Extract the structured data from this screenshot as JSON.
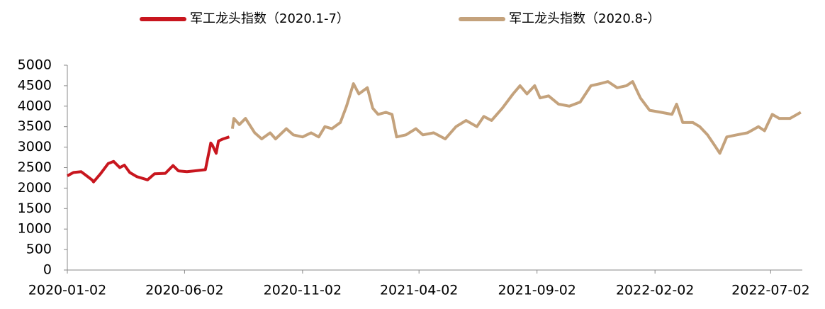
{
  "chart_data": {
    "type": "line",
    "series": [
      {
        "name": "军工龙头指数（2020.1-7）",
        "color": "#c8161e",
        "x": [
          "2020-01-02",
          "2020-01-10",
          "2020-01-20",
          "2020-02-03",
          "2020-02-05",
          "2020-02-14",
          "2020-02-24",
          "2020-03-02",
          "2020-03-10",
          "2020-03-16",
          "2020-03-23",
          "2020-04-01",
          "2020-04-15",
          "2020-04-24",
          "2020-05-08",
          "2020-05-18",
          "2020-05-25",
          "2020-06-05",
          "2020-06-15",
          "2020-06-29",
          "2020-07-06",
          "2020-07-08",
          "2020-07-13",
          "2020-07-16",
          "2020-07-22",
          "2020-07-30"
        ],
        "values": [
          2300,
          2380,
          2400,
          2200,
          2150,
          2350,
          2600,
          2650,
          2500,
          2560,
          2380,
          2280,
          2200,
          2350,
          2360,
          2550,
          2420,
          2400,
          2420,
          2450,
          3100,
          3050,
          2850,
          3150,
          3200,
          3250
        ]
      },
      {
        "name": "军工龙头指数（2020.8-）",
        "color": "#c4a27c",
        "x": [
          "2020-08-03",
          "2020-08-05",
          "2020-08-12",
          "2020-08-20",
          "2020-09-01",
          "2020-09-10",
          "2020-09-21",
          "2020-09-28",
          "2020-10-12",
          "2020-10-21",
          "2020-11-02",
          "2020-11-13",
          "2020-11-23",
          "2020-12-01",
          "2020-12-10",
          "2020-12-21",
          "2020-12-29",
          "2021-01-07",
          "2021-01-14",
          "2021-01-25",
          "2021-02-01",
          "2021-02-08",
          "2021-02-18",
          "2021-02-26",
          "2021-03-04",
          "2021-03-16",
          "2021-03-29",
          "2021-04-07",
          "2021-04-21",
          "2021-05-06",
          "2021-05-20",
          "2021-06-02",
          "2021-06-16",
          "2021-06-25",
          "2021-07-05",
          "2021-07-19",
          "2021-08-02",
          "2021-08-11",
          "2021-08-20",
          "2021-08-30",
          "2021-09-06",
          "2021-09-17",
          "2021-09-30",
          "2021-10-14",
          "2021-10-28",
          "2021-11-11",
          "2021-11-23",
          "2021-12-03",
          "2021-12-15",
          "2021-12-27",
          "2022-01-04",
          "2022-01-14",
          "2022-01-26",
          "2022-02-10",
          "2022-02-24",
          "2022-03-02",
          "2022-03-10",
          "2022-03-23",
          "2022-04-01",
          "2022-04-11",
          "2022-04-20",
          "2022-04-27",
          "2022-05-06",
          "2022-05-19",
          "2022-06-02",
          "2022-06-16",
          "2022-06-24",
          "2022-07-04",
          "2022-07-13",
          "2022-07-27",
          "2022-08-10"
        ],
        "values": [
          3450,
          3700,
          3550,
          3700,
          3350,
          3200,
          3350,
          3200,
          3450,
          3300,
          3250,
          3350,
          3250,
          3500,
          3450,
          3600,
          4000,
          4550,
          4300,
          4450,
          3950,
          3800,
          3850,
          3800,
          3250,
          3300,
          3450,
          3300,
          3350,
          3200,
          3500,
          3650,
          3500,
          3750,
          3650,
          3950,
          4300,
          4500,
          4300,
          4500,
          4200,
          4250,
          4050,
          4000,
          4100,
          4500,
          4550,
          4600,
          4450,
          4500,
          4600,
          4200,
          3900,
          3850,
          3800,
          4050,
          3600,
          3600,
          3500,
          3300,
          3050,
          2850,
          3250,
          3300,
          3350,
          3500,
          3400,
          3800,
          3700,
          3700,
          3850
        ]
      }
    ],
    "xlim": [
      "2020-01-02",
      "2022-08-12"
    ],
    "xticks": [
      "2020-01-02",
      "2020-06-02",
      "2020-11-02",
      "2021-04-02",
      "2021-09-02",
      "2022-02-02",
      "2022-07-02"
    ],
    "ylim": [
      0,
      5000
    ],
    "yticks": [
      0,
      500,
      1000,
      1500,
      2000,
      2500,
      3000,
      3500,
      4000,
      4500,
      5000
    ]
  }
}
